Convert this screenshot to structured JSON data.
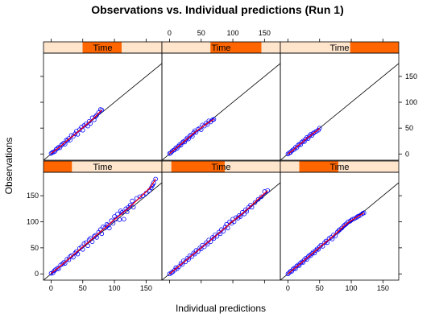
{
  "chart_data": {
    "type": "scatter",
    "title": "Observations vs. Individual predictions (Run 1)",
    "xlabel": "Individual predictions",
    "ylabel": "Observations",
    "xlim": [
      -12,
      175
    ],
    "ylim": [
      -12,
      195
    ],
    "xticks": [
      0,
      50,
      100,
      150
    ],
    "yticks": [
      0,
      50,
      100,
      150
    ],
    "strip_label": "Time",
    "colors": {
      "points": "#0000ff",
      "smooth": "#ff0000",
      "reference": "#000000",
      "strip_bg": "#ffe5cc",
      "strip_fill": "#ff6600"
    },
    "panels": [
      {
        "id": "time-4",
        "strip": [
          0.33,
          0.66
        ],
        "points": [
          [
            0,
            1
          ],
          [
            2,
            3
          ],
          [
            4,
            4
          ],
          [
            6,
            5
          ],
          [
            8,
            9
          ],
          [
            10,
            11
          ],
          [
            12,
            13
          ],
          [
            14,
            12
          ],
          [
            16,
            17
          ],
          [
            18,
            19
          ],
          [
            20,
            21
          ],
          [
            22,
            19
          ],
          [
            24,
            27
          ],
          [
            26,
            26
          ],
          [
            28,
            30
          ],
          [
            30,
            27
          ],
          [
            32,
            36
          ],
          [
            35,
            34
          ],
          [
            38,
            39
          ],
          [
            40,
            44
          ],
          [
            42,
            38
          ],
          [
            45,
            47
          ],
          [
            48,
            52
          ],
          [
            50,
            46
          ],
          [
            52,
            55
          ],
          [
            55,
            58
          ],
          [
            58,
            54
          ],
          [
            60,
            63
          ],
          [
            62,
            59
          ],
          [
            65,
            70
          ],
          [
            68,
            66
          ],
          [
            70,
            72
          ],
          [
            72,
            75
          ],
          [
            75,
            80
          ],
          [
            78,
            86
          ],
          [
            80,
            85
          ]
        ]
      },
      {
        "id": "time-5",
        "strip": [
          0.41,
          0.84
        ],
        "points": [
          [
            0,
            1
          ],
          [
            2,
            2
          ],
          [
            4,
            5
          ],
          [
            6,
            7
          ],
          [
            8,
            8
          ],
          [
            10,
            12
          ],
          [
            12,
            11
          ],
          [
            14,
            15
          ],
          [
            16,
            18
          ],
          [
            18,
            17
          ],
          [
            20,
            22
          ],
          [
            22,
            24
          ],
          [
            24,
            23
          ],
          [
            26,
            28
          ],
          [
            28,
            31
          ],
          [
            30,
            29
          ],
          [
            32,
            35
          ],
          [
            34,
            37
          ],
          [
            36,
            34
          ],
          [
            38,
            41
          ],
          [
            40,
            45
          ],
          [
            42,
            42
          ],
          [
            45,
            48
          ],
          [
            48,
            50
          ],
          [
            50,
            47
          ],
          [
            52,
            56
          ],
          [
            55,
            54
          ],
          [
            58,
            60
          ],
          [
            60,
            57
          ],
          [
            62,
            64
          ],
          [
            65,
            62
          ],
          [
            68,
            66
          ],
          [
            70,
            67
          ]
        ]
      },
      {
        "id": "time-6",
        "strip": [
          0.59,
          1.0
        ],
        "points": [
          [
            0,
            0
          ],
          [
            2,
            2
          ],
          [
            4,
            3
          ],
          [
            6,
            6
          ],
          [
            8,
            8
          ],
          [
            10,
            9
          ],
          [
            12,
            13
          ],
          [
            14,
            12
          ],
          [
            16,
            17
          ],
          [
            18,
            19
          ],
          [
            20,
            18
          ],
          [
            22,
            23
          ],
          [
            24,
            25
          ],
          [
            26,
            24
          ],
          [
            28,
            29
          ],
          [
            30,
            32
          ],
          [
            32,
            30
          ],
          [
            34,
            35
          ],
          [
            36,
            38
          ],
          [
            38,
            36
          ],
          [
            40,
            40
          ],
          [
            42,
            42
          ],
          [
            45,
            44
          ],
          [
            48,
            46
          ],
          [
            50,
            50
          ]
        ]
      },
      {
        "id": "time-1",
        "strip": [
          0.0,
          0.24
        ],
        "points": [
          [
            0,
            1
          ],
          [
            3,
            2
          ],
          [
            5,
            6
          ],
          [
            7,
            8
          ],
          [
            10,
            11
          ],
          [
            12,
            10
          ],
          [
            15,
            17
          ],
          [
            18,
            19
          ],
          [
            20,
            22
          ],
          [
            22,
            20
          ],
          [
            25,
            28
          ],
          [
            28,
            27
          ],
          [
            30,
            33
          ],
          [
            32,
            35
          ],
          [
            35,
            32
          ],
          [
            38,
            40
          ],
          [
            40,
            43
          ],
          [
            42,
            38
          ],
          [
            45,
            49
          ],
          [
            48,
            52
          ],
          [
            50,
            47
          ],
          [
            52,
            58
          ],
          [
            55,
            60
          ],
          [
            58,
            54
          ],
          [
            60,
            65
          ],
          [
            62,
            68
          ],
          [
            65,
            62
          ],
          [
            68,
            72
          ],
          [
            70,
            74
          ],
          [
            72,
            70
          ],
          [
            75,
            80
          ],
          [
            78,
            85
          ],
          [
            80,
            77
          ],
          [
            82,
            90
          ],
          [
            85,
            88
          ],
          [
            88,
            95
          ],
          [
            90,
            93
          ],
          [
            92,
            88
          ],
          [
            95,
            102
          ],
          [
            98,
            97
          ],
          [
            100,
            110
          ],
          [
            102,
            105
          ],
          [
            105,
            115
          ],
          [
            108,
            104
          ],
          [
            110,
            121
          ],
          [
            112,
            118
          ],
          [
            115,
            105
          ],
          [
            118,
            125
          ],
          [
            120,
            119
          ],
          [
            122,
            128
          ],
          [
            125,
            132
          ],
          [
            128,
            140
          ],
          [
            130,
            128
          ],
          [
            135,
            145
          ],
          [
            140,
            148
          ],
          [
            145,
            150
          ],
          [
            150,
            155
          ],
          [
            155,
            160
          ],
          [
            158,
            165
          ],
          [
            160,
            170
          ],
          [
            162,
            175
          ],
          [
            165,
            182
          ]
        ]
      },
      {
        "id": "time-2",
        "strip": [
          0.08,
          0.53
        ],
        "points": [
          [
            0,
            0
          ],
          [
            3,
            2
          ],
          [
            5,
            4
          ],
          [
            8,
            7
          ],
          [
            10,
            12
          ],
          [
            12,
            10
          ],
          [
            15,
            14
          ],
          [
            18,
            20
          ],
          [
            20,
            18
          ],
          [
            22,
            25
          ],
          [
            25,
            23
          ],
          [
            28,
            30
          ],
          [
            30,
            28
          ],
          [
            32,
            35
          ],
          [
            35,
            33
          ],
          [
            38,
            40
          ],
          [
            40,
            38
          ],
          [
            42,
            45
          ],
          [
            45,
            43
          ],
          [
            48,
            50
          ],
          [
            50,
            48
          ],
          [
            52,
            55
          ],
          [
            55,
            52
          ],
          [
            58,
            60
          ],
          [
            60,
            57
          ],
          [
            62,
            65
          ],
          [
            65,
            62
          ],
          [
            68,
            70
          ],
          [
            70,
            68
          ],
          [
            72,
            75
          ],
          [
            75,
            72
          ],
          [
            78,
            80
          ],
          [
            80,
            77
          ],
          [
            82,
            85
          ],
          [
            85,
            82
          ],
          [
            88,
            90
          ],
          [
            90,
            95
          ],
          [
            92,
            88
          ],
          [
            95,
            100
          ],
          [
            98,
            97
          ],
          [
            100,
            105
          ],
          [
            102,
            100
          ],
          [
            105,
            108
          ],
          [
            108,
            107
          ],
          [
            110,
            112
          ],
          [
            112,
            110
          ],
          [
            115,
            118
          ],
          [
            118,
            115
          ],
          [
            120,
            123
          ],
          [
            122,
            120
          ],
          [
            125,
            128
          ],
          [
            128,
            132
          ],
          [
            130,
            128
          ],
          [
            135,
            137
          ],
          [
            140,
            143
          ],
          [
            145,
            148
          ],
          [
            150,
            158
          ],
          [
            155,
            160
          ]
        ]
      },
      {
        "id": "time-3",
        "strip": [
          0.16,
          0.49
        ],
        "points": [
          [
            0,
            0
          ],
          [
            2,
            2
          ],
          [
            4,
            5
          ],
          [
            6,
            5
          ],
          [
            8,
            9
          ],
          [
            10,
            11
          ],
          [
            12,
            10
          ],
          [
            14,
            15
          ],
          [
            16,
            17
          ],
          [
            18,
            16
          ],
          [
            20,
            21
          ],
          [
            22,
            23
          ],
          [
            24,
            22
          ],
          [
            26,
            27
          ],
          [
            28,
            30
          ],
          [
            30,
            28
          ],
          [
            32,
            33
          ],
          [
            34,
            36
          ],
          [
            36,
            35
          ],
          [
            38,
            39
          ],
          [
            40,
            42
          ],
          [
            42,
            40
          ],
          [
            44,
            45
          ],
          [
            46,
            48
          ],
          [
            48,
            47
          ],
          [
            50,
            52
          ],
          [
            52,
            55
          ],
          [
            55,
            53
          ],
          [
            58,
            60
          ],
          [
            60,
            63
          ],
          [
            62,
            60
          ],
          [
            65,
            68
          ],
          [
            68,
            70
          ],
          [
            70,
            67
          ],
          [
            72,
            75
          ],
          [
            75,
            73
          ],
          [
            78,
            80
          ],
          [
            80,
            83
          ],
          [
            82,
            85
          ],
          [
            85,
            88
          ],
          [
            88,
            92
          ],
          [
            90,
            94
          ],
          [
            92,
            96
          ],
          [
            95,
            100
          ],
          [
            98,
            101
          ],
          [
            100,
            103
          ],
          [
            102,
            105
          ],
          [
            105,
            106
          ],
          [
            108,
            108
          ],
          [
            110,
            110
          ],
          [
            112,
            111
          ],
          [
            115,
            113
          ],
          [
            118,
            116
          ],
          [
            120,
            117
          ]
        ]
      }
    ]
  }
}
